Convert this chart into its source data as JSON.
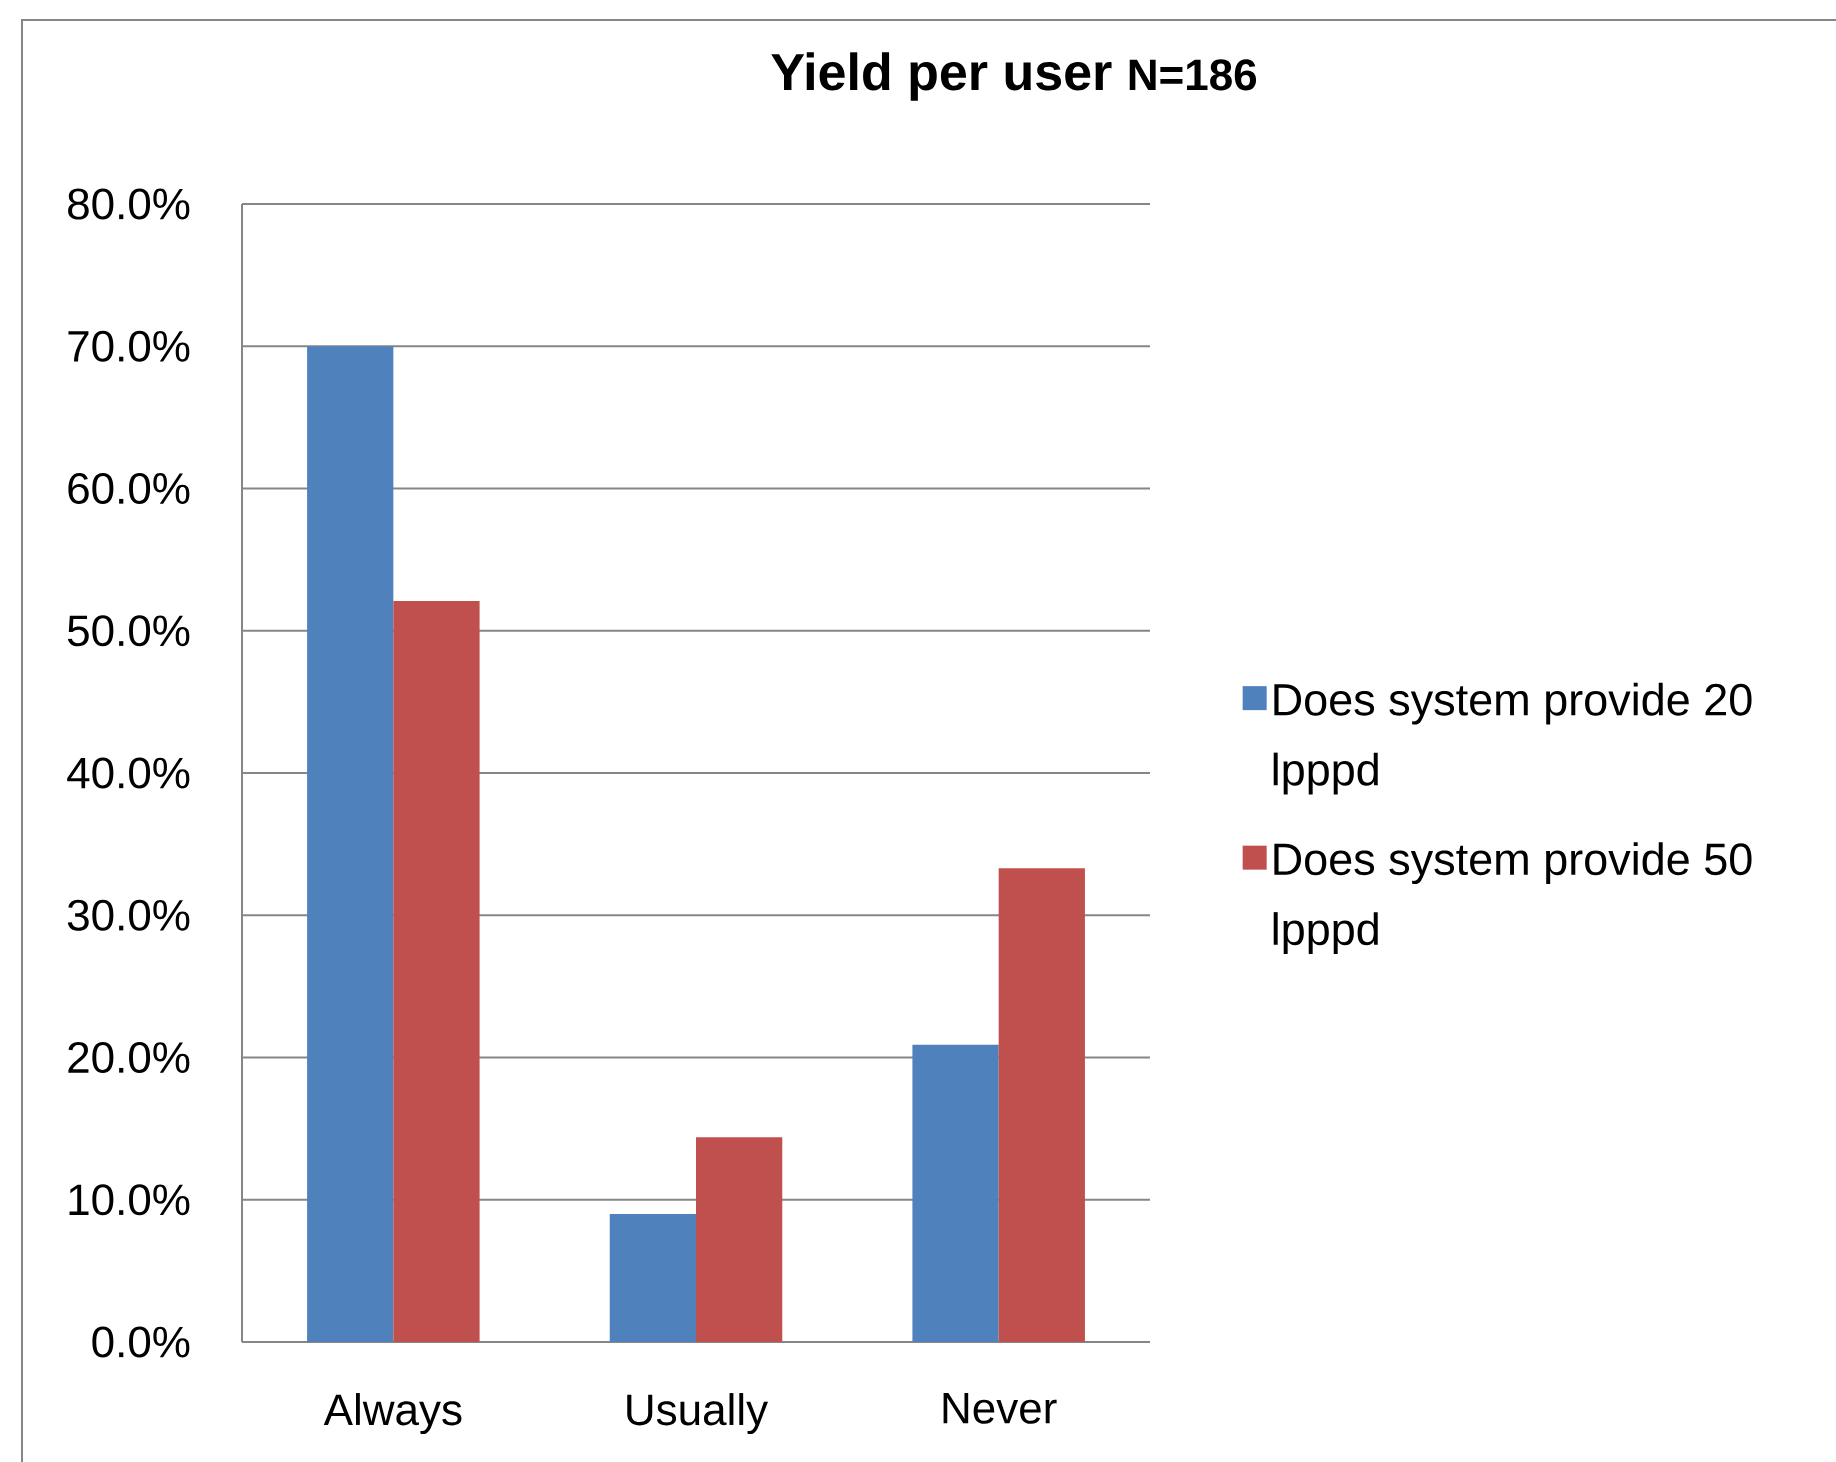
{
  "chart_data": {
    "type": "bar",
    "title": "Yield per user",
    "subtitle": "N=186",
    "categories": [
      "Always",
      "Usually",
      "Never"
    ],
    "series": [
      {
        "name": "Does system provide 20 lpppd",
        "color": "#4f81bd",
        "values": [
          70.0,
          9.0,
          20.9
        ]
      },
      {
        "name": "Does system provide 50 lpppd",
        "color": "#c0504d",
        "values": [
          52.1,
          14.4,
          33.3
        ]
      }
    ],
    "ylim": [
      0,
      80
    ],
    "yticks": [
      {
        "value": 0,
        "label": "0.0%"
      },
      {
        "value": 10,
        "label": "10.0%"
      },
      {
        "value": 20,
        "label": "20.0%"
      },
      {
        "value": 30,
        "label": "30.0%"
      },
      {
        "value": 40,
        "label": "40.0%"
      },
      {
        "value": 50,
        "label": "50.0%"
      },
      {
        "value": 60,
        "label": "60.0%"
      },
      {
        "value": 70,
        "label": "70.0%"
      },
      {
        "value": 80,
        "label": "80.0%"
      }
    ],
    "grid": "y",
    "legend": "right"
  }
}
